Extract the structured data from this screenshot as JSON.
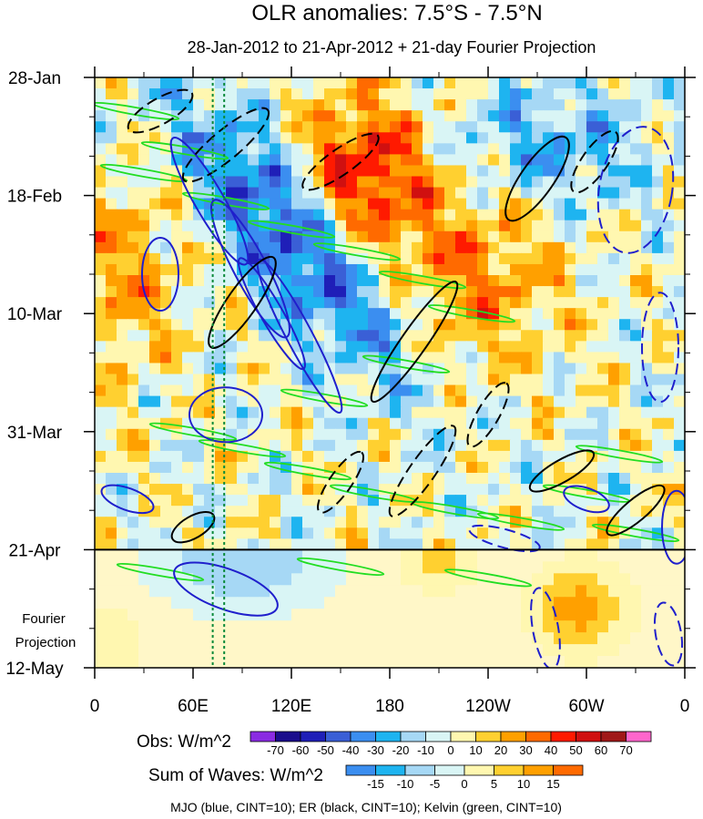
{
  "chart_data": {
    "type": "heatmap",
    "title": "OLR anomalies: 7.5°S - 7.5°N",
    "subtitle": "28-Jan-2012 to 21-Apr-2012 + 21-day Fourier Projection",
    "x_tick_labels": [
      "0",
      "60E",
      "120E",
      "180",
      "120W",
      "60W",
      "0"
    ],
    "x_tick_values_deg": [
      0,
      60,
      120,
      180,
      240,
      300,
      360
    ],
    "xlim_deg": [
      0,
      360
    ],
    "y_tick_labels": [
      "28-Jan",
      "18-Feb",
      "10-Mar",
      "31-Mar",
      "21-Apr",
      "12-May"
    ],
    "y_tick_values_day": [
      0,
      21,
      42,
      63,
      84,
      105
    ],
    "ylim_day": [
      0,
      105
    ],
    "projection_start_day": 84,
    "projection_label": [
      "Fourier",
      "Projection"
    ],
    "vertical_dotted_lines_deg": [
      72,
      79
    ],
    "obs_colorbar": {
      "label": "Obs: W/m^2",
      "levels": [
        "-70",
        "-60",
        "-50",
        "-40",
        "-30",
        "-20",
        "-10",
        "0",
        "10",
        "20",
        "30",
        "40",
        "50",
        "60",
        "70"
      ],
      "colors": [
        "#8a2be2",
        "#1a0d8c",
        "#1f1fb8",
        "#3a5fd6",
        "#3b8ef0",
        "#1eb4f0",
        "#a6d8f5",
        "#d9f5f5",
        "#fff7b0",
        "#ffd030",
        "#ffa000",
        "#ff6a00",
        "#ff1a00",
        "#d01010",
        "#a01818",
        "#ff66cc"
      ]
    },
    "waves_colorbar": {
      "label": "Sum of Waves: W/m^2",
      "levels": [
        "-15",
        "-10",
        "-5",
        "0",
        "5",
        "10",
        "15"
      ],
      "colors": [
        "#3b8ef0",
        "#1eb4f0",
        "#a6d8f5",
        "#d9f5f5",
        "#fff7b0",
        "#ffd030",
        "#ffa000",
        "#ff6a00"
      ]
    },
    "footer": "MJO (blue, CINT=10); ER (black, CINT=10); Kelvin (green, CINT=10)",
    "series": [
      {
        "name": "MJO",
        "color": "#1f1fcc",
        "cint": 10
      },
      {
        "name": "ER",
        "color": "#000000",
        "cint": 10
      },
      {
        "name": "Kelvin",
        "color": "#22dd22",
        "cint": 10
      }
    ]
  }
}
